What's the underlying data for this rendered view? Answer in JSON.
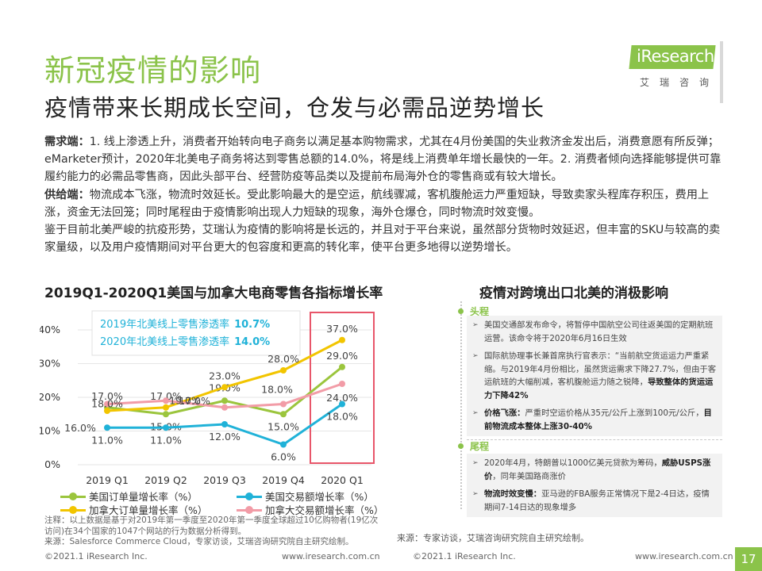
{
  "page": {
    "title": "新冠疫情的影响",
    "subtitle": "疫情带来长期成长空间，仓发与必需品逆势增长",
    "number": "17"
  },
  "logo": {
    "text": "iResearch",
    "cn": "艾瑞咨询"
  },
  "body": {
    "demand_label": "需求端：",
    "demand_text": "1. 线上渗透上升，消费者开始转向电子商务以满足基本购物需求，尤其在4月份美国的失业救济金发出后，消费意愿有所反弹；eMarketer预计，2020年北美电子商务将达到零售总额的14.0%，将是线上消费单年增长最快的一年。2. 消费者倾向选择能够提供可靠履约能力的必需品零售商，因此头部平台、经营防疫等品类以及提前布局海外仓的零售商或有较大增长。",
    "supply_label": "供给端：",
    "supply_text": "物流成本飞涨，物流时效延长。受此影响最大的是空运，航线骤减，客机腹舱运力严重短缺，导致卖家头程库存积压，费用上涨，资金无法回笼；同时尾程由于疫情影响出现人力短缺的现象，海外仓爆仓，同时物流时效变慢。",
    "conclusion": "鉴于目前北美严峻的抗疫形势，艾瑞认为疫情的影响将是长远的，并且对于平台来说，虽然部分货物时效延迟，但丰富的SKU与较高的卖家量级，以及用户疫情期间对平台更大的包容度和更高的转化率，使平台更多地得以逆势增长。"
  },
  "chart_titles": {
    "left": "2019Q1-2020Q1美国与加拿大电商零售各指标增长率",
    "right": "疫情对跨境出口北美的消极影响"
  },
  "chart_data": {
    "type": "line",
    "categories": [
      "2019 Q1",
      "2019 Q2",
      "2019 Q3",
      "2019 Q4",
      "2020 Q1"
    ],
    "ylim": [
      0,
      40
    ],
    "yticks": [
      "0%",
      "10%",
      "20%",
      "30%",
      "40%"
    ],
    "grid": true,
    "legend_position": "bottom",
    "series": [
      {
        "name": "美国订单量增长率（%）",
        "color": "#9bc53d",
        "values": [
          17.0,
          15.0,
          19.0,
          15.0,
          29.0
        ],
        "labels": [
          "17.0%",
          "15.0%",
          "19.0%",
          "15.0%",
          "29.0%"
        ]
      },
      {
        "name": "美国交易额增长率（%）",
        "color": "#20b2d8",
        "values": [
          11.0,
          11.0,
          12.0,
          6.0,
          18.0
        ],
        "labels": [
          "11.0%",
          "11.0%",
          "12.0%",
          "6.0%",
          "18.0%"
        ]
      },
      {
        "name": "加拿大订单量增长率（%）",
        "color": "#f2c500",
        "values": [
          16.0,
          17.0,
          23.0,
          28.0,
          37.0
        ],
        "labels": [
          "16.0%",
          "17.0%",
          "23.0%",
          "28.0%",
          "37.0%"
        ]
      },
      {
        "name": "加拿大交易额增长率（%）",
        "color": "#f29ca7",
        "values": [
          18.0,
          19.0,
          17.0,
          18.0,
          24.0
        ],
        "labels": [
          "18.0%",
          "19.0%",
          "17.0%",
          "18.0%",
          "24.0%"
        ]
      }
    ],
    "annotations": [
      {
        "text": "2019年北美线上零售渗透率",
        "value": "10.7%"
      },
      {
        "text": "2020年北美线上零售渗透率",
        "value": "14.0%"
      }
    ],
    "highlight": {
      "category": "2020 Q1",
      "color": "#e8566a"
    }
  },
  "notes": {
    "note": "注释：以上数据是基于对2019年第一季度至2020年第一季度全球超过10亿购物者(19亿次访问)在34个国家的1047个网站的行为数据分析得到。",
    "source": "来源：Salesforce Commerce Cloud，专家访谈，艾瑞咨询研究院自主研究绘制。"
  },
  "panel": {
    "head1": "头程",
    "items1": [
      {
        "text": "美国交通部发布命令，将暂停中国航空公司往返美国的定期航班运营。该命令将于2020年6月16日生效",
        "bold": ""
      },
      {
        "text": "国际航协理事长兼首席执行官表示：“当前航空货运运力严重紧缩。与2019年4月份相比，虽然货运需求下降27.7%，但由于客运航班的大幅削减，客机腹舱运力随之锐降，",
        "bold": "导致整体的货运运力下降42%"
      },
      {
        "text": "",
        "bold_prefix": "价格飞涨：",
        "mid": "严重时空运价格从35元/公斤上涨到100元/公斤，",
        "bold": "目前物流成本整体上涨30-40%"
      }
    ],
    "head2": "尾程",
    "items2": [
      {
        "text": "2020年4月，特朗普以1000亿美元贷款为筹码，",
        "bold": "威胁USPS涨价",
        "tail": "，同年美国路商涨价"
      },
      {
        "text": "",
        "bold_prefix": "物流时效变慢：",
        "mid": "亚马逊的FBA服务正常情况下是2-4日达，疫情期间7-14日达的现象增多",
        "bold": ""
      }
    ],
    "source": "来源：专家访谈，艾瑞咨询研究院自主研究绘制。"
  },
  "footer": {
    "left_copyright": "©2021.1 iResearch Inc.",
    "left_url": "www.iresearch.com.cn",
    "right_copyright": "©2021.1 iResearch Inc.",
    "right_url": "www.iresearch.com.cn"
  }
}
